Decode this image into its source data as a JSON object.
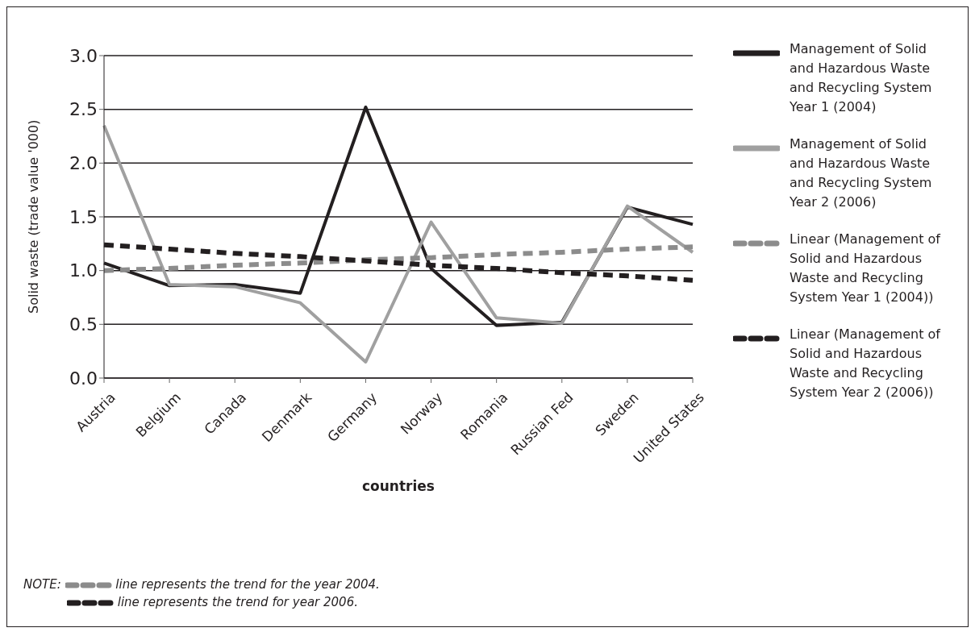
{
  "chart_data": {
    "type": "line",
    "xlabel": "countries",
    "ylabel": "Solid waste (trade value '000)",
    "categories": [
      "Austria",
      "Belgium",
      "Canada",
      "Denmark",
      "Germany",
      "Norway",
      "Romania",
      "Russian Fed",
      "Sweden",
      "United States"
    ],
    "series": [
      {
        "name": "Management of Solid and Hazardous Waste and Recycling System Year 1 (2004)",
        "color": "#231f20",
        "line_style": "solid",
        "values": [
          1.07,
          0.86,
          0.87,
          0.79,
          2.52,
          1.02,
          0.49,
          0.52,
          1.59,
          1.43
        ]
      },
      {
        "name": "Management of Solid and Hazardous Waste and Recycling System Year 2 (2006)",
        "color": "#a0a0a0",
        "line_style": "solid",
        "values": [
          2.35,
          0.87,
          0.85,
          0.7,
          0.15,
          1.45,
          0.56,
          0.51,
          1.6,
          1.17
        ]
      },
      {
        "name": "Linear (Management of Solid and Hazardous Waste and Recycling System Year 1 (2004))",
        "color": "#8c8c8c",
        "line_style": "dashed",
        "values": [
          1.0,
          1.02,
          1.05,
          1.07,
          1.1,
          1.12,
          1.15,
          1.17,
          1.2,
          1.22
        ]
      },
      {
        "name": "Linear (Management of Solid and Hazardous Waste and Recycling System Year 2 (2006))",
        "color": "#231f20",
        "line_style": "dashed",
        "values": [
          1.24,
          1.2,
          1.16,
          1.13,
          1.09,
          1.05,
          1.02,
          0.98,
          0.95,
          0.91
        ]
      }
    ],
    "ylim": [
      0,
      3
    ],
    "yticks": [
      {
        "value": 0,
        "label": "0.0"
      },
      {
        "value": 0.5,
        "label": "0.5"
      },
      {
        "value": 1,
        "label": "1.0"
      },
      {
        "value": 1.5,
        "label": "1.5"
      },
      {
        "value": 2,
        "label": "2.0"
      },
      {
        "value": 2.5,
        "label": "2.5"
      },
      {
        "value": 3,
        "label": "3.0"
      }
    ],
    "grid": "y",
    "legend": "right",
    "annotations": [
      "NOTE:",
      "line represents the trend  for the year 2004.",
      "line represents the trend for year 2006."
    ]
  }
}
